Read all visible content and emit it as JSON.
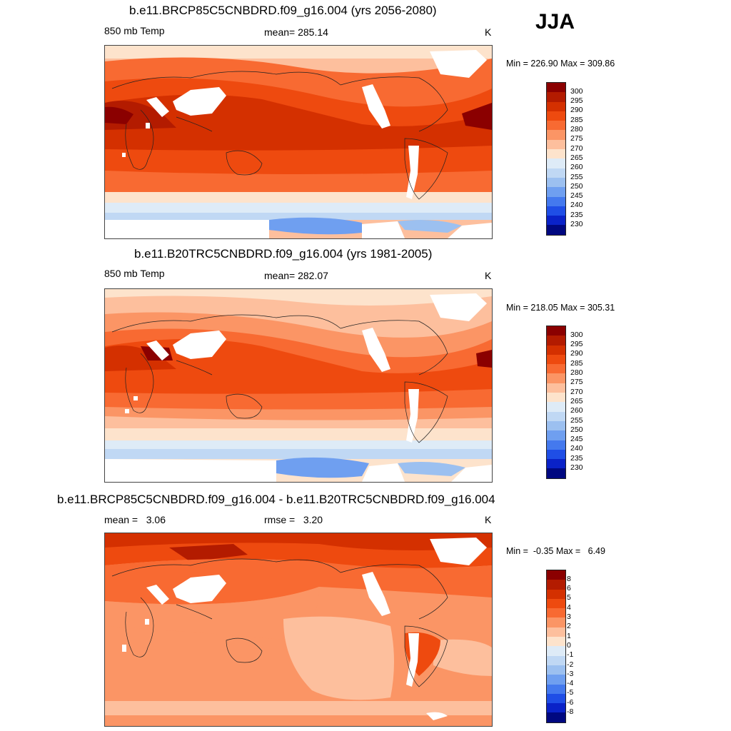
{
  "season": "JJA",
  "panels": [
    {
      "title": "b.e11.BRCP85C5CNBDRD.f09_g16.004 (yrs 2056-2080)",
      "left_label": "850 mb Temp",
      "center_label": "mean= 285.14",
      "units": "K",
      "minmax": "Min = 226.90 Max = 309.86"
    },
    {
      "title": "b.e11.B20TRC5CNBDRD.f09_g16.004 (yrs 1981-2005)",
      "left_label": "850 mb Temp",
      "center_label": "mean= 282.07",
      "units": "K",
      "minmax": "Min = 218.05 Max = 305.31"
    },
    {
      "title": "b.e11.BRCP85C5CNBDRD.f09_g16.004 - b.e11.B20TRC5CNBDRD.f09_g16.004",
      "left_label": "mean =   3.06",
      "center_label": "rmse =   3.20",
      "units": "K",
      "minmax": "Min =  -0.35 Max =   6.49"
    }
  ],
  "colorbar_abs": {
    "labels": [
      "300",
      "295",
      "290",
      "285",
      "280",
      "275",
      "270",
      "265",
      "260",
      "255",
      "250",
      "245",
      "240",
      "235",
      "230"
    ],
    "colors": [
      "#8b0000",
      "#b31b00",
      "#d43000",
      "#ee4a0f",
      "#f86a32",
      "#fb9565",
      "#fdbf9d",
      "#fde3cc",
      "#deebf7",
      "#c0d8f4",
      "#9cc0f0",
      "#6f9ff0",
      "#4479ee",
      "#1f4ee6",
      "#0a22c8",
      "#000880"
    ]
  },
  "colorbar_diff": {
    "labels": [
      "8",
      "6",
      "5",
      "4",
      "3",
      "2",
      "1",
      "0",
      "-1",
      "-2",
      "-3",
      "-4",
      "-5",
      "-6",
      "-8"
    ],
    "colors": [
      "#8b0000",
      "#b31b00",
      "#d43000",
      "#ee4a0f",
      "#f86a32",
      "#fb9565",
      "#fdbf9d",
      "#fde3cc",
      "#deebf7",
      "#c0d8f4",
      "#9cc0f0",
      "#6f9ff0",
      "#4479ee",
      "#1f4ee6",
      "#0a22c8",
      "#000880"
    ]
  }
}
